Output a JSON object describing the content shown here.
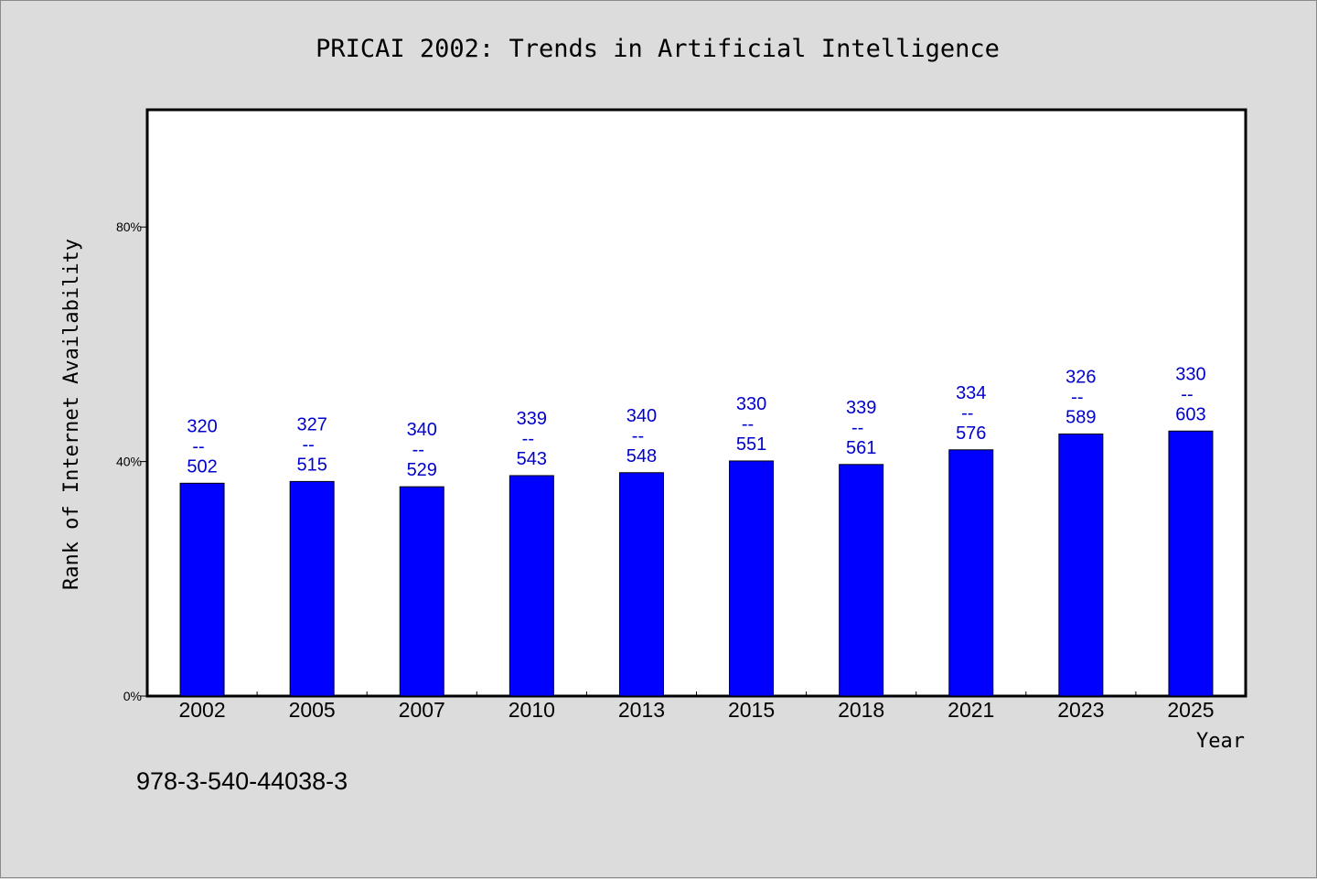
{
  "chart_data": {
    "type": "bar",
    "title": "PRICAI 2002: Trends in Artificial Intelligence",
    "xlabel": "Year",
    "ylabel": "Rank of Internet Availability",
    "categories": [
      "2002",
      "2005",
      "2007",
      "2010",
      "2013",
      "2015",
      "2018",
      "2021",
      "2023",
      "2025"
    ],
    "values": [
      36.3,
      36.6,
      35.7,
      37.6,
      38.1,
      40.1,
      39.5,
      42.0,
      44.7,
      45.2
    ],
    "label_top": [
      "320",
      "327",
      "340",
      "339",
      "340",
      "330",
      "339",
      "334",
      "326",
      "330"
    ],
    "label_separator": "--",
    "label_bottom": [
      "502",
      "515",
      "529",
      "543",
      "548",
      "551",
      "561",
      "576",
      "589",
      "603"
    ],
    "ylim": [
      0,
      100
    ],
    "yticks": [
      0,
      40,
      80
    ],
    "ytick_labels": [
      "0%",
      "40%",
      "80%"
    ],
    "grid": false,
    "legend": "none",
    "bar_color": "#0000ff",
    "label_color": "#0000cc"
  },
  "footnote": "978-3-540-44038-3"
}
